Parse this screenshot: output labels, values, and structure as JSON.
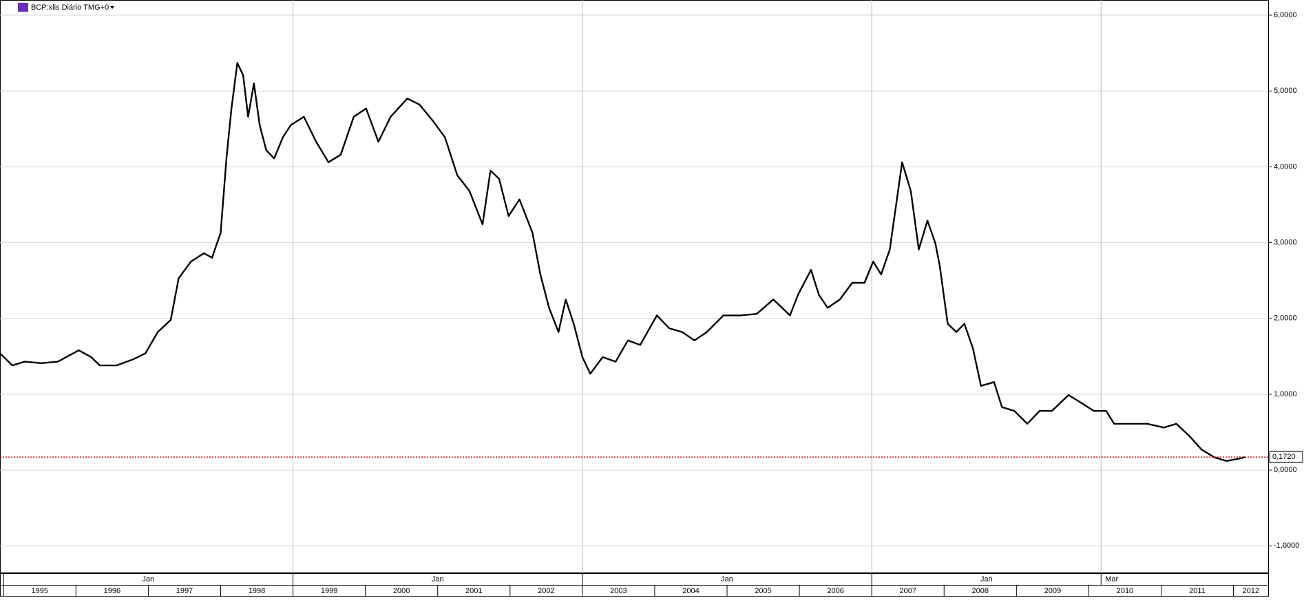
{
  "chart_data": {
    "type": "line",
    "title": "BCP:xlis Diário TMG+0",
    "x": [
      1994.95,
      1995.12,
      1995.29,
      1995.52,
      1995.75,
      1996.04,
      1996.21,
      1996.33,
      1996.56,
      1996.79,
      1996.96,
      1997.13,
      1997.31,
      1997.42,
      1997.59,
      1997.77,
      1997.88,
      1998.0,
      1998.08,
      1998.15,
      1998.23,
      1998.31,
      1998.38,
      1998.46,
      1998.54,
      1998.63,
      1998.74,
      1998.86,
      1998.97,
      1999.15,
      1999.32,
      1999.49,
      1999.66,
      1999.84,
      2000.01,
      2000.18,
      2000.35,
      2000.58,
      2000.75,
      2000.93,
      2001.1,
      2001.27,
      2001.44,
      2001.62,
      2001.73,
      2001.85,
      2001.98,
      2002.13,
      2002.31,
      2002.42,
      2002.54,
      2002.67,
      2002.77,
      2002.88,
      2003.0,
      2003.11,
      2003.28,
      2003.46,
      2003.63,
      2003.8,
      2004.03,
      2004.2,
      2004.38,
      2004.55,
      2004.72,
      2004.95,
      2005.18,
      2005.41,
      2005.64,
      2005.87,
      2005.98,
      2006.16,
      2006.27,
      2006.39,
      2006.56,
      2006.73,
      2006.9,
      2007.02,
      2007.13,
      2007.25,
      2007.42,
      2007.54,
      2007.65,
      2007.77,
      2007.88,
      2007.94,
      2008.05,
      2008.17,
      2008.28,
      2008.4,
      2008.51,
      2008.69,
      2008.8,
      2008.97,
      2009.15,
      2009.32,
      2009.49,
      2009.72,
      2009.89,
      2010.07,
      2010.24,
      2010.35,
      2010.58,
      2010.81,
      2011.04,
      2011.21,
      2011.39,
      2011.56,
      2011.73,
      2011.9,
      2012.08,
      2012.16
    ],
    "series": [
      {
        "name": "BCP:xlis",
        "color": "#000000",
        "values": [
          1.54,
          1.38,
          1.43,
          1.41,
          1.43,
          1.58,
          1.49,
          1.38,
          1.38,
          1.46,
          1.54,
          1.82,
          1.98,
          2.53,
          2.75,
          2.86,
          2.8,
          3.13,
          4.11,
          4.77,
          5.37,
          5.21,
          4.66,
          5.1,
          4.55,
          4.22,
          4.11,
          4.39,
          4.55,
          4.66,
          4.33,
          4.06,
          4.16,
          4.66,
          4.77,
          4.33,
          4.66,
          4.9,
          4.82,
          4.61,
          4.39,
          3.89,
          3.68,
          3.24,
          3.95,
          3.84,
          3.35,
          3.57,
          3.13,
          2.58,
          2.14,
          1.82,
          2.25,
          1.93,
          1.49,
          1.27,
          1.49,
          1.43,
          1.71,
          1.65,
          2.04,
          1.87,
          1.82,
          1.71,
          1.82,
          2.04,
          2.04,
          2.06,
          2.25,
          2.04,
          2.31,
          2.64,
          2.31,
          2.14,
          2.25,
          2.47,
          2.47,
          2.75,
          2.58,
          2.91,
          4.06,
          3.68,
          2.91,
          3.29,
          2.99,
          2.69,
          1.93,
          1.82,
          1.93,
          1.6,
          1.11,
          1.16,
          0.83,
          0.78,
          0.61,
          0.78,
          0.78,
          0.99,
          0.89,
          0.78,
          0.78,
          0.61,
          0.61,
          0.61,
          0.56,
          0.61,
          0.45,
          0.27,
          0.17,
          0.12,
          0.15,
          0.17
        ]
      }
    ],
    "xlim": [
      1994.95,
      2012.48
    ],
    "xticks": [
      1995,
      1996,
      1997,
      1998,
      1999,
      2000,
      2001,
      2002,
      2003,
      2004,
      2005,
      2006,
      2007,
      2008,
      2009,
      2010,
      2011,
      2012
    ],
    "period_ticks": [
      {
        "value": 1995,
        "label": "Jan"
      },
      {
        "value": 1999,
        "label": "Jan"
      },
      {
        "value": 2003,
        "label": "Jan"
      },
      {
        "value": 2007,
        "label": "Jan"
      },
      {
        "value": 2010.17,
        "label": "Mar"
      }
    ],
    "ylim": [
      -1.36,
      6.2
    ],
    "yticks": [
      {
        "value": -1,
        "label": "-1,0000"
      },
      {
        "value": 0,
        "label": "0,0000"
      },
      {
        "value": 1,
        "label": "1,0000"
      },
      {
        "value": 2,
        "label": "2,0000"
      },
      {
        "value": 3,
        "label": "3,0000"
      },
      {
        "value": 4,
        "label": "4,0000"
      },
      {
        "value": 5,
        "label": "5,0000"
      },
      {
        "value": 6,
        "label": "6,0000"
      }
    ],
    "last_price": {
      "value": 0.172,
      "label": "0,1720",
      "color": "#cc0000"
    },
    "grid": true
  }
}
